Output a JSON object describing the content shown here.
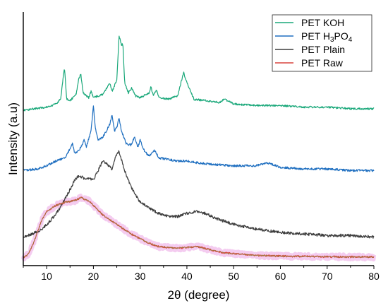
{
  "chart_data": {
    "type": "line",
    "title": "",
    "xlabel": "2θ (degree)",
    "ylabel": "Intensity (a.u)",
    "xlim": [
      5,
      80
    ],
    "xticks": [
      10,
      20,
      30,
      40,
      50,
      60,
      70,
      80
    ],
    "grid": false,
    "legend_position": "top-right",
    "legend": [
      {
        "label": "PET KOH",
        "color": "#1aa87a"
      },
      {
        "label": "PET H3PO4",
        "color": "#1f6fc0",
        "rich": [
          "PET H",
          "3",
          "PO",
          "4"
        ]
      },
      {
        "label": "PET Plain",
        "color": "#3d3d3d"
      },
      {
        "label": "PET Raw",
        "color": "#d9443f"
      }
    ],
    "series": [
      {
        "name": "PET KOH",
        "color": "#1aa87a",
        "points": [
          [
            5,
            0.93
          ],
          [
            10,
            0.95
          ],
          [
            12,
            0.97
          ],
          [
            13,
            1.0
          ],
          [
            13.8,
            1.2
          ],
          [
            14.3,
            1.0
          ],
          [
            15,
            0.99
          ],
          [
            16.3,
            1.03
          ],
          [
            16.8,
            1.12
          ],
          [
            17.3,
            1.16
          ],
          [
            17.8,
            1.04
          ],
          [
            19,
            1.01
          ],
          [
            19.5,
            1.05
          ],
          [
            20,
            1.01
          ],
          [
            22,
            1.03
          ],
          [
            23.5,
            1.1
          ],
          [
            24,
            1.05
          ],
          [
            25,
            1.12
          ],
          [
            25.5,
            1.4
          ],
          [
            26,
            1.34
          ],
          [
            26.3,
            1.35
          ],
          [
            26.7,
            1.1
          ],
          [
            27.5,
            1.04
          ],
          [
            28.2,
            1.07
          ],
          [
            29,
            1.02
          ],
          [
            30,
            1.01
          ],
          [
            32,
            1.04
          ],
          [
            32.3,
            1.08
          ],
          [
            32.8,
            1.02
          ],
          [
            33.5,
            1.06
          ],
          [
            34,
            1.01
          ],
          [
            36,
            1.0
          ],
          [
            38,
            1.02
          ],
          [
            39.3,
            1.17
          ],
          [
            39.8,
            1.12
          ],
          [
            40.5,
            1.07
          ],
          [
            41.5,
            1.0
          ],
          [
            44,
            0.99
          ],
          [
            47,
            0.98
          ],
          [
            48,
            1.0
          ],
          [
            50,
            0.97
          ],
          [
            55,
            0.96
          ],
          [
            60,
            0.96
          ],
          [
            65,
            0.95
          ],
          [
            70,
            0.95
          ],
          [
            75,
            0.94
          ],
          [
            80,
            0.94
          ]
        ]
      },
      {
        "name": "PET H3PO4",
        "color": "#1f6fc0",
        "points": [
          [
            5,
            0.55
          ],
          [
            8,
            0.56
          ],
          [
            10,
            0.58
          ],
          [
            12,
            0.61
          ],
          [
            14,
            0.63
          ],
          [
            15.5,
            0.72
          ],
          [
            16,
            0.66
          ],
          [
            17,
            0.68
          ],
          [
            18,
            0.74
          ],
          [
            18.5,
            0.7
          ],
          [
            19.5,
            0.8
          ],
          [
            20,
            0.96
          ],
          [
            20.4,
            0.82
          ],
          [
            21,
            0.74
          ],
          [
            22,
            0.76
          ],
          [
            23.5,
            0.84
          ],
          [
            24,
            0.9
          ],
          [
            24.5,
            0.8
          ],
          [
            25,
            0.82
          ],
          [
            25.5,
            0.88
          ],
          [
            26,
            0.8
          ],
          [
            27,
            0.72
          ],
          [
            28,
            0.71
          ],
          [
            28.8,
            0.76
          ],
          [
            29.5,
            0.7
          ],
          [
            30,
            0.74
          ],
          [
            31,
            0.67
          ],
          [
            32,
            0.64
          ],
          [
            33,
            0.68
          ],
          [
            34,
            0.63
          ],
          [
            36,
            0.62
          ],
          [
            38,
            0.61
          ],
          [
            40,
            0.61
          ],
          [
            42,
            0.6
          ],
          [
            45,
            0.59
          ],
          [
            50,
            0.58
          ],
          [
            55,
            0.58
          ],
          [
            57,
            0.6
          ],
          [
            60,
            0.57
          ],
          [
            65,
            0.56
          ],
          [
            70,
            0.56
          ],
          [
            75,
            0.55
          ],
          [
            80,
            0.55
          ]
        ]
      },
      {
        "name": "PET Plain",
        "color": "#3d3d3d",
        "points": [
          [
            5,
            0.13
          ],
          [
            7,
            0.15
          ],
          [
            9,
            0.18
          ],
          [
            11,
            0.24
          ],
          [
            13,
            0.32
          ],
          [
            15,
            0.43
          ],
          [
            16,
            0.49
          ],
          [
            17,
            0.52
          ],
          [
            18,
            0.5
          ],
          [
            19,
            0.5
          ],
          [
            20,
            0.49
          ],
          [
            21,
            0.55
          ],
          [
            22,
            0.61
          ],
          [
            23,
            0.59
          ],
          [
            24,
            0.56
          ],
          [
            25,
            0.66
          ],
          [
            25.5,
            0.67
          ],
          [
            26,
            0.62
          ],
          [
            27,
            0.52
          ],
          [
            28,
            0.45
          ],
          [
            29,
            0.4
          ],
          [
            30,
            0.35
          ],
          [
            32,
            0.31
          ],
          [
            34,
            0.28
          ],
          [
            36,
            0.26
          ],
          [
            38,
            0.26
          ],
          [
            40,
            0.28
          ],
          [
            42,
            0.29
          ],
          [
            44,
            0.28
          ],
          [
            46,
            0.25
          ],
          [
            50,
            0.21
          ],
          [
            55,
            0.18
          ],
          [
            60,
            0.16
          ],
          [
            65,
            0.15
          ],
          [
            70,
            0.14
          ],
          [
            75,
            0.14
          ],
          [
            80,
            0.13
          ]
        ]
      },
      {
        "name": "PET Raw",
        "color": "#d9443f",
        "points": [
          [
            5,
            0.0
          ],
          [
            6,
            0.02
          ],
          [
            7,
            0.08
          ],
          [
            8,
            0.16
          ],
          [
            9,
            0.24
          ],
          [
            10,
            0.29
          ],
          [
            12,
            0.33
          ],
          [
            14,
            0.35
          ],
          [
            16,
            0.36
          ],
          [
            17.5,
            0.38
          ],
          [
            18,
            0.37
          ],
          [
            19,
            0.36
          ],
          [
            20,
            0.33
          ],
          [
            22,
            0.27
          ],
          [
            24,
            0.23
          ],
          [
            26,
            0.19
          ],
          [
            28,
            0.15
          ],
          [
            30,
            0.12
          ],
          [
            32,
            0.09
          ],
          [
            34,
            0.07
          ],
          [
            36,
            0.065
          ],
          [
            38,
            0.06
          ],
          [
            40,
            0.065
          ],
          [
            42,
            0.07
          ],
          [
            43,
            0.065
          ],
          [
            45,
            0.05
          ],
          [
            48,
            0.03
          ],
          [
            50,
            0.025
          ],
          [
            55,
            0.015
          ],
          [
            60,
            0.01
          ],
          [
            65,
            0.008
          ],
          [
            70,
            0.006
          ],
          [
            75,
            0.005
          ],
          [
            80,
            0.004
          ]
        ]
      }
    ]
  }
}
